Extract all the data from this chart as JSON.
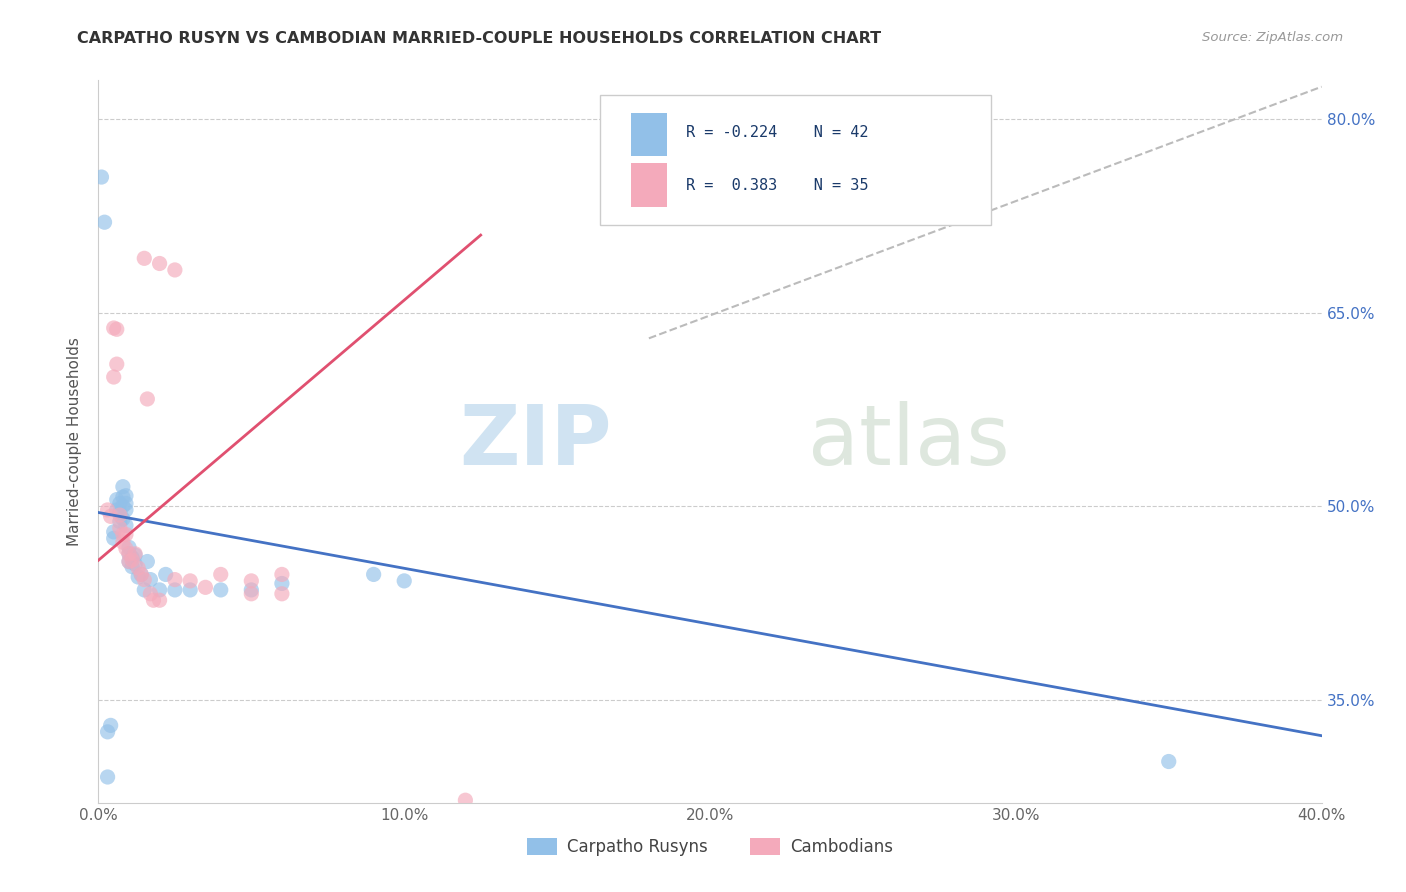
{
  "title": "CARPATHO RUSYN VS CAMBODIAN MARRIED-COUPLE HOUSEHOLDS CORRELATION CHART",
  "source": "Source: ZipAtlas.com",
  "ylabel": "Married-couple Households",
  "xlim": [
    0.0,
    0.4
  ],
  "ylim": [
    0.27,
    0.83
  ],
  "x_tick_positions": [
    0.0,
    0.1,
    0.2,
    0.3,
    0.4
  ],
  "x_tick_labels": [
    "0.0%",
    "10.0%",
    "20.0%",
    "30.0%",
    "40.0%"
  ],
  "y_tick_positions": [
    0.35,
    0.5,
    0.65,
    0.8
  ],
  "y_tick_labels": [
    "35.0%",
    "50.0%",
    "65.0%",
    "80.0%"
  ],
  "blue_color": "#92C0E8",
  "pink_color": "#F4AABB",
  "trend_blue": "#4472C4",
  "trend_pink": "#E05070",
  "trend_gray": "#BBBBBB",
  "blue_x": [
    0.001,
    0.002,
    0.003,
    0.004,
    0.005,
    0.005,
    0.006,
    0.006,
    0.007,
    0.007,
    0.007,
    0.008,
    0.008,
    0.008,
    0.008,
    0.009,
    0.009,
    0.009,
    0.009,
    0.01,
    0.01,
    0.01,
    0.011,
    0.011,
    0.012,
    0.012,
    0.013,
    0.014,
    0.015,
    0.016,
    0.017,
    0.02,
    0.022,
    0.025,
    0.03,
    0.04,
    0.05,
    0.06,
    0.09,
    0.1,
    0.003,
    0.35
  ],
  "blue_y": [
    0.755,
    0.72,
    0.29,
    0.33,
    0.48,
    0.475,
    0.505,
    0.497,
    0.502,
    0.495,
    0.488,
    0.515,
    0.507,
    0.5,
    0.49,
    0.508,
    0.502,
    0.497,
    0.485,
    0.468,
    0.463,
    0.457,
    0.46,
    0.453,
    0.462,
    0.455,
    0.445,
    0.447,
    0.435,
    0.457,
    0.443,
    0.435,
    0.447,
    0.435,
    0.435,
    0.435,
    0.435,
    0.44,
    0.447,
    0.442,
    0.325,
    0.302
  ],
  "pink_x": [
    0.003,
    0.004,
    0.005,
    0.005,
    0.006,
    0.006,
    0.007,
    0.007,
    0.008,
    0.008,
    0.009,
    0.009,
    0.01,
    0.01,
    0.011,
    0.012,
    0.013,
    0.014,
    0.015,
    0.016,
    0.017,
    0.018,
    0.02,
    0.025,
    0.03,
    0.035,
    0.04,
    0.05,
    0.06,
    0.015,
    0.02,
    0.025,
    0.05,
    0.06,
    0.12
  ],
  "pink_y": [
    0.497,
    0.492,
    0.638,
    0.6,
    0.637,
    0.61,
    0.493,
    0.483,
    0.478,
    0.472,
    0.478,
    0.467,
    0.463,
    0.457,
    0.458,
    0.463,
    0.452,
    0.447,
    0.443,
    0.583,
    0.432,
    0.427,
    0.427,
    0.443,
    0.442,
    0.437,
    0.447,
    0.442,
    0.447,
    0.692,
    0.688,
    0.683,
    0.432,
    0.432,
    0.272
  ],
  "blue_trend_x": [
    0.0,
    0.4
  ],
  "blue_trend_y": [
    0.495,
    0.322
  ],
  "pink_trend_x": [
    0.0,
    0.125
  ],
  "pink_trend_y": [
    0.458,
    0.71
  ],
  "gray_trend_x": [
    0.18,
    0.4
  ],
  "gray_trend_y": [
    0.63,
    0.825
  ],
  "legend_r1": "R = -0.224",
  "legend_n1": "N = 42",
  "legend_r2": "R =  0.383",
  "legend_n2": "N = 35"
}
